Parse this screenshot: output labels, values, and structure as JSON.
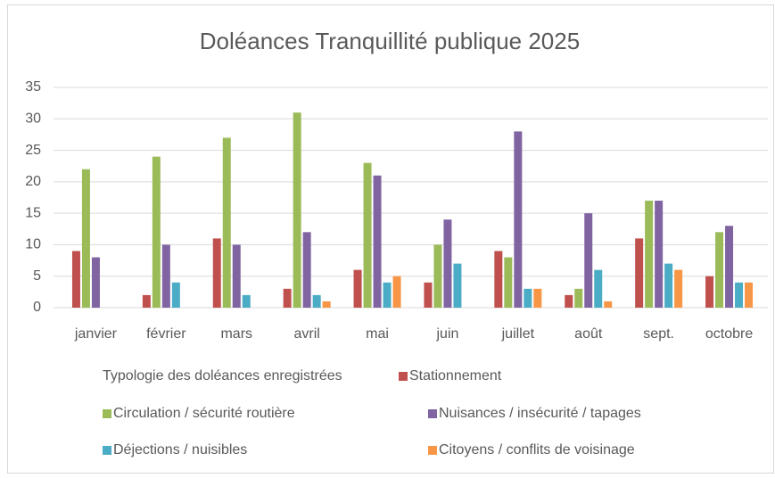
{
  "chart_data": {
    "type": "bar",
    "title": "Doléances Tranquillité publique 2025",
    "categories": [
      "janvier",
      "février",
      "mars",
      "avril",
      "mai",
      "juin",
      "juillet",
      "août",
      "sept.",
      "octobre"
    ],
    "legend_title": "Typologie des doléances enregistrées",
    "series": [
      {
        "name": "Stationnement",
        "color": "#C0504D",
        "values": [
          9,
          2,
          11,
          3,
          6,
          4,
          9,
          2,
          11,
          5
        ]
      },
      {
        "name": "Circulation / sécurité routière",
        "color": "#9BBB59",
        "values": [
          22,
          24,
          27,
          31,
          23,
          10,
          8,
          3,
          17,
          12
        ]
      },
      {
        "name": "Nuisances / insécurité / tapages",
        "color": "#8064A2",
        "values": [
          8,
          10,
          10,
          12,
          21,
          14,
          28,
          15,
          17,
          13
        ]
      },
      {
        "name": "Déjections / nuisibles",
        "color": "#4BACC6",
        "values": [
          0,
          4,
          2,
          2,
          4,
          7,
          3,
          6,
          7,
          4
        ]
      },
      {
        "name": "Citoyens / conflits de voisinage",
        "color": "#F79646",
        "values": [
          0,
          0,
          0,
          1,
          5,
          0,
          3,
          1,
          6,
          4
        ]
      }
    ],
    "ylim": [
      0,
      35
    ],
    "yticks": [
      0,
      5,
      10,
      15,
      20,
      25,
      30,
      35
    ],
    "grid": true,
    "legend": "bottom"
  }
}
